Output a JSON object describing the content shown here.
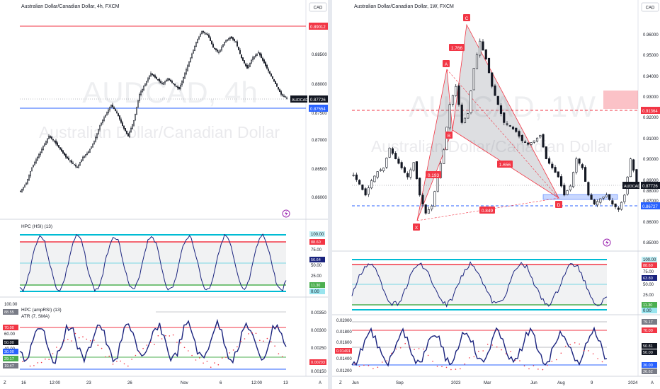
{
  "left": {
    "title": "Australian Dollar/Canadian Dollar, 4h, FXCM",
    "currency": "CAD",
    "watermark_symbol": "AUDCAD, 4h",
    "watermark_name": "Australian Dollar/Canadian Dollar",
    "ticker_badge": "AUDCAD",
    "price_labels": {
      "top_red": "0.89012",
      "last": "0.87726",
      "blue": "0.87554"
    },
    "y_ticks": [
      "0.88500",
      "0.88000",
      "0.87500",
      "0.87000",
      "0.86500",
      "0.86000"
    ],
    "ind1_title": "HPC (HSI) (13)",
    "ind1_labels": [
      "100.00",
      "88.60",
      "75.00",
      "56.64",
      "50.00",
      "25.00",
      "11.30",
      "0.00"
    ],
    "ind2_title": "HPC (ampRSI) (13)",
    "ind2_subtitle": "ATR (7, SMA)",
    "ind2_left_labels": [
      "100.00",
      "88.55",
      "70.00",
      "60.00",
      "50.00",
      "40.00",
      "30.00",
      "29.17",
      "19.47"
    ],
    "ind2_right_labels": [
      "0.00350",
      "0.00300",
      "0.00250",
      "0.00203",
      "0.00150"
    ],
    "x_ticks": [
      "16",
      "12:00",
      "23",
      "26",
      "Nov",
      "6",
      "12:00",
      "13"
    ],
    "scale_a": "A",
    "scale_z": "Z"
  },
  "right": {
    "title": "Australian Dollar/Canadian Dollar, 1W, FXCM",
    "currency": "CAD",
    "watermark_symbol": "AUDCAD, 1W",
    "watermark_name": "Australian Dollar/Canadian Dollar",
    "ticker_badge": "AUDCAD",
    "price_labels": {
      "red_dashed": "0.91364",
      "last": "0.87726",
      "blue_dashed": "0.86727"
    },
    "y_ticks": [
      "0.96000",
      "0.95000",
      "0.94000",
      "0.93000",
      "0.92000",
      "0.91000",
      "0.90000",
      "0.89000",
      "0.88000",
      "0.87000",
      "0.86000",
      "0.85000"
    ],
    "pattern_points": [
      "X",
      "A",
      "B",
      "C",
      "D"
    ],
    "ratios": [
      "1.766",
      "0.193",
      "1.656",
      "0.849"
    ],
    "ind1_labels": [
      "100.00",
      "88.60",
      "75.00",
      "63.80",
      "50.00",
      "25.00",
      "11.30",
      "0.00"
    ],
    "ind2_left_labels": [
      "0.02000",
      "0.01800",
      "0.01600",
      "0.01491",
      "0.01400",
      "0.01200"
    ],
    "ind2_right_labels": [
      "79.17",
      "70.00",
      "50.81",
      "50.00",
      "30.00",
      "26.62"
    ],
    "x_ticks": [
      "Jun",
      "Sep",
      "2023",
      "Mar",
      "Jun",
      "Aug",
      "9",
      "2024"
    ],
    "scale_a": "A",
    "scale_z": "Z"
  },
  "chart_data": [
    {
      "type": "candlestick",
      "title": "Australian Dollar/Canadian Dollar, 4h, FXCM",
      "ylim": [
        0.8575,
        0.892
      ],
      "series": [
        {
          "name": "AUDCAD 4h",
          "values": [
            0.8595,
            0.861,
            0.864,
            0.866,
            0.868,
            0.87,
            0.869,
            0.8675,
            0.866,
            0.865,
            0.864,
            0.866,
            0.867,
            0.869,
            0.872,
            0.874,
            0.876,
            0.8745,
            0.872,
            0.87,
            0.873,
            0.878,
            0.88,
            0.882,
            0.881,
            0.88,
            0.881,
            0.88,
            0.879,
            0.882,
            0.885,
            0.888,
            0.89,
            0.8895,
            0.887,
            0.886,
            0.888,
            0.889,
            0.888,
            0.885,
            0.883,
            0.885,
            0.886,
            0.884,
            0.882,
            0.88,
            0.878,
            0.8773
          ]
        }
      ]
    },
    {
      "type": "candlestick",
      "title": "Australian Dollar/Canadian Dollar, 1W, FXCM",
      "ylim": [
        0.843,
        0.966
      ],
      "series": [
        {
          "name": "AUDCAD 1W",
          "values": [
            0.881,
            0.876,
            0.87,
            0.878,
            0.883,
            0.885,
            0.896,
            0.89,
            0.885,
            0.88,
            0.888,
            0.87,
            0.86,
            0.864,
            0.88,
            0.895,
            0.92,
            0.93,
            0.91,
            0.915,
            0.94,
            0.955,
            0.945,
            0.93,
            0.92,
            0.91,
            0.908,
            0.905,
            0.9,
            0.898,
            0.9,
            0.903,
            0.89,
            0.885,
            0.88,
            0.87,
            0.875,
            0.89,
            0.885,
            0.87,
            0.865,
            0.868,
            0.87,
            0.865,
            0.862,
            0.87,
            0.89,
            0.8773
          ]
        }
      ]
    }
  ]
}
